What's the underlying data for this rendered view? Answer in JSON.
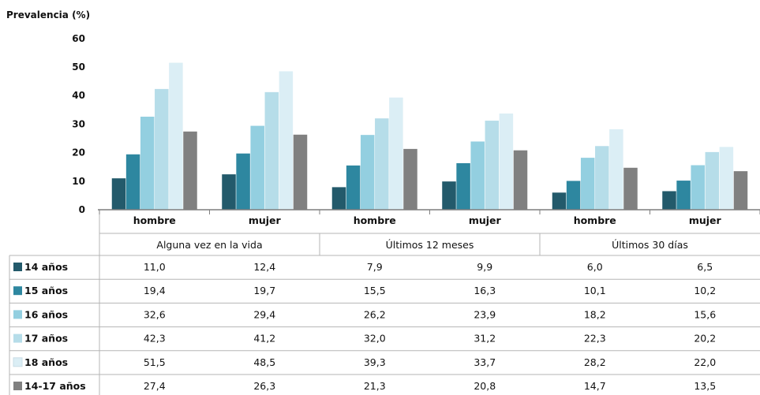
{
  "chart_data": {
    "type": "bar",
    "ylabel": "Prevalencia (%)",
    "ylim": [
      0,
      60
    ],
    "yticks": [
      0,
      10,
      20,
      30,
      40,
      50,
      60
    ],
    "grid": false,
    "legend_placement": "table-left",
    "categories": [
      "hombre",
      "mujer",
      "hombre",
      "mujer",
      "hombre",
      "mujer"
    ],
    "groups": [
      "Alguna vez en la vida",
      "Últimos 12 meses",
      "Últimos 30 días"
    ],
    "series": [
      {
        "name": "14 años",
        "color": "#235a6b",
        "values": [
          11.0,
          12.4,
          7.9,
          9.9,
          6.0,
          6.5
        ],
        "labels": [
          "11,0",
          "12,4",
          "7,9",
          "9,9",
          "6,0",
          "6,5"
        ]
      },
      {
        "name": "15 años",
        "color": "#2e87a0",
        "values": [
          19.4,
          19.7,
          15.5,
          16.3,
          10.1,
          10.2
        ],
        "labels": [
          "19,4",
          "19,7",
          "15,5",
          "16,3",
          "10,1",
          "10,2"
        ]
      },
      {
        "name": "16 años",
        "color": "#93cfe0",
        "values": [
          32.6,
          29.4,
          26.2,
          23.9,
          18.2,
          15.6
        ],
        "labels": [
          "32,6",
          "29,4",
          "26,2",
          "23,9",
          "18,2",
          "15,6"
        ]
      },
      {
        "name": "17 años",
        "color": "#b6dde9",
        "values": [
          42.3,
          41.2,
          32.0,
          31.2,
          22.3,
          20.2
        ],
        "labels": [
          "42,3",
          "41,2",
          "32,0",
          "31,2",
          "22,3",
          "20,2"
        ]
      },
      {
        "name": "18 años",
        "color": "#dbeef5",
        "values": [
          51.5,
          48.5,
          39.3,
          33.7,
          28.2,
          22.0
        ],
        "labels": [
          "51,5",
          "48,5",
          "39,3",
          "33,7",
          "28,2",
          "22,0"
        ]
      },
      {
        "name": "14-17 años",
        "color": "#808080",
        "values": [
          27.4,
          26.3,
          21.3,
          20.8,
          14.7,
          13.5
        ],
        "labels": [
          "27,4",
          "26,3",
          "21,3",
          "20,8",
          "14,7",
          "13,5"
        ]
      }
    ]
  }
}
